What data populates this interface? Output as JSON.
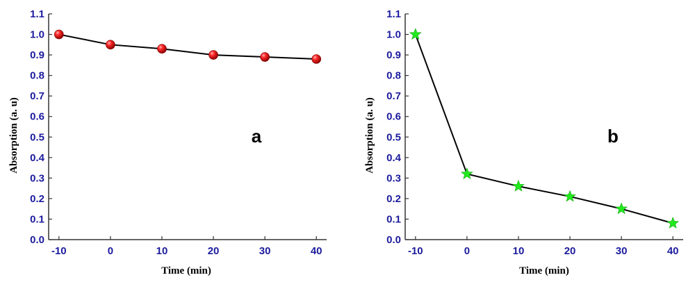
{
  "colors": {
    "tick_label": "#1c1c9e",
    "axis_title": "#7a1212",
    "axis_line": "#333333",
    "series_line": "#000000",
    "marker_a": "#e8141c",
    "marker_b": "#22e81e"
  },
  "chart_data": [
    {
      "type": "line",
      "panel_label": "a",
      "xlabel": "Time (min)",
      "ylabel": "Absorption (a. u)",
      "x": [
        -10,
        0,
        10,
        20,
        30,
        40
      ],
      "series": [
        {
          "values": [
            1.0,
            0.95,
            0.93,
            0.9,
            0.89,
            0.88
          ],
          "marker": "sphere"
        }
      ],
      "xlim": [
        -12,
        42
      ],
      "ylim": [
        0.0,
        1.1
      ],
      "xticks": [
        "-10",
        "0",
        "10",
        "20",
        "30",
        "40"
      ],
      "yticks": [
        "0.0",
        "0.1",
        "0.2",
        "0.3",
        "0.4",
        "0.5",
        "0.6",
        "0.7",
        "0.8",
        "0.9",
        "1.0",
        "1.1"
      ],
      "grid": false,
      "legend": "none"
    },
    {
      "type": "line",
      "panel_label": "b",
      "xlabel": "Time (min)",
      "ylabel": "Absorption (a. u)",
      "x": [
        -10,
        0,
        10,
        20,
        30,
        40
      ],
      "series": [
        {
          "values": [
            1.0,
            0.32,
            0.26,
            0.21,
            0.15,
            0.08
          ],
          "marker": "star"
        }
      ],
      "xlim": [
        -12,
        42
      ],
      "ylim": [
        0.0,
        1.1
      ],
      "xticks": [
        "-10",
        "0",
        "10",
        "20",
        "30",
        "40"
      ],
      "yticks": [
        "0.0",
        "0.1",
        "0.2",
        "0.3",
        "0.4",
        "0.5",
        "0.6",
        "0.7",
        "0.8",
        "0.9",
        "1.0",
        "1.1"
      ],
      "grid": false,
      "legend": "none"
    }
  ]
}
